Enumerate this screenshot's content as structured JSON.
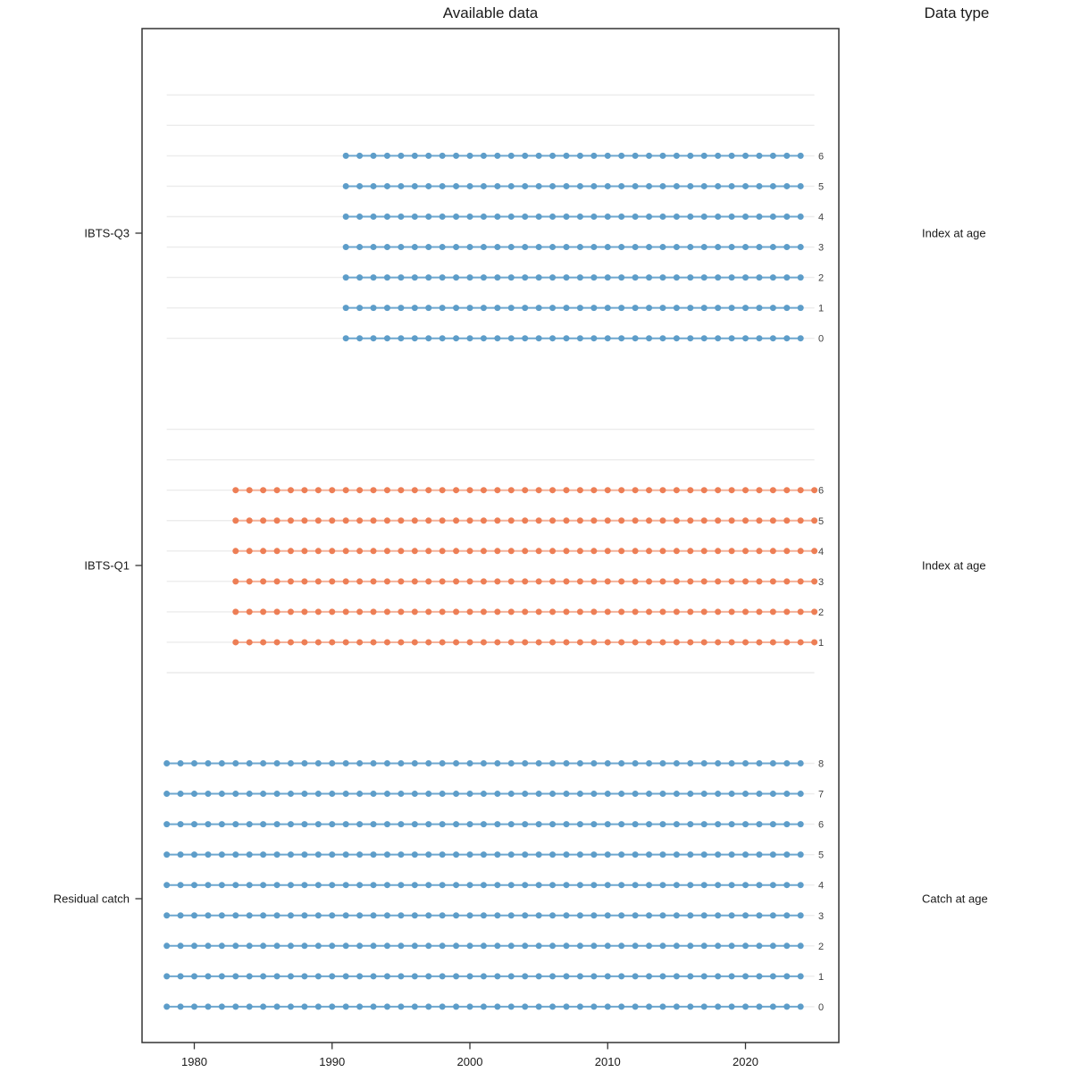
{
  "chart_data": {
    "type": "scatter",
    "title": "Available data",
    "right_header": "Data type",
    "xlabel": "",
    "ylabel": "",
    "x_ticks": [
      1980,
      1990,
      2000,
      2010,
      2020
    ],
    "x_range": [
      1976.2,
      2026.8
    ],
    "gridline_year_range": [
      1978,
      2025
    ],
    "age_slots_top_to_bottom": [
      8,
      7,
      6,
      5,
      4,
      3,
      2,
      1,
      0
    ],
    "grid_color": "#ececec",
    "border_color": "#343434",
    "text_color": "#1a1a1a",
    "age_label_color": "#404040",
    "panels": [
      {
        "fleet": "IBTS-Q3",
        "data_type": "Index at age",
        "dot_color": "#5d9dc9",
        "line_color": "#6ea7cf",
        "rows": [
          {
            "age": 6,
            "year_start": 1991,
            "year_end": 2024
          },
          {
            "age": 5,
            "year_start": 1991,
            "year_end": 2024
          },
          {
            "age": 4,
            "year_start": 1991,
            "year_end": 2024
          },
          {
            "age": 3,
            "year_start": 1991,
            "year_end": 2024
          },
          {
            "age": 2,
            "year_start": 1991,
            "year_end": 2024
          },
          {
            "age": 1,
            "year_start": 1991,
            "year_end": 2024
          },
          {
            "age": 0,
            "year_start": 1991,
            "year_end": 2024
          }
        ]
      },
      {
        "fleet": "IBTS-Q1",
        "data_type": "Index at age",
        "dot_color": "#ed7e55",
        "line_color": "#f4b29a",
        "rows": [
          {
            "age": 6,
            "year_start": 1983,
            "year_end": 2025
          },
          {
            "age": 5,
            "year_start": 1983,
            "year_end": 2025
          },
          {
            "age": 4,
            "year_start": 1983,
            "year_end": 2025
          },
          {
            "age": 3,
            "year_start": 1983,
            "year_end": 2025
          },
          {
            "age": 2,
            "year_start": 1983,
            "year_end": 2025
          },
          {
            "age": 1,
            "year_start": 1983,
            "year_end": 2025
          }
        ]
      },
      {
        "fleet": "Residual catch",
        "data_type": "Catch at age",
        "dot_color": "#5d9dc9",
        "line_color": "#6ea7cf",
        "rows": [
          {
            "age": 8,
            "year_start": 1978,
            "year_end": 2024
          },
          {
            "age": 7,
            "year_start": 1978,
            "year_end": 2024
          },
          {
            "age": 6,
            "year_start": 1978,
            "year_end": 2024
          },
          {
            "age": 5,
            "year_start": 1978,
            "year_end": 2024
          },
          {
            "age": 4,
            "year_start": 1978,
            "year_end": 2024
          },
          {
            "age": 3,
            "year_start": 1978,
            "year_end": 2024
          },
          {
            "age": 2,
            "year_start": 1978,
            "year_end": 2024
          },
          {
            "age": 1,
            "year_start": 1978,
            "year_end": 2024
          },
          {
            "age": 0,
            "year_start": 1978,
            "year_end": 2024
          }
        ]
      }
    ]
  }
}
